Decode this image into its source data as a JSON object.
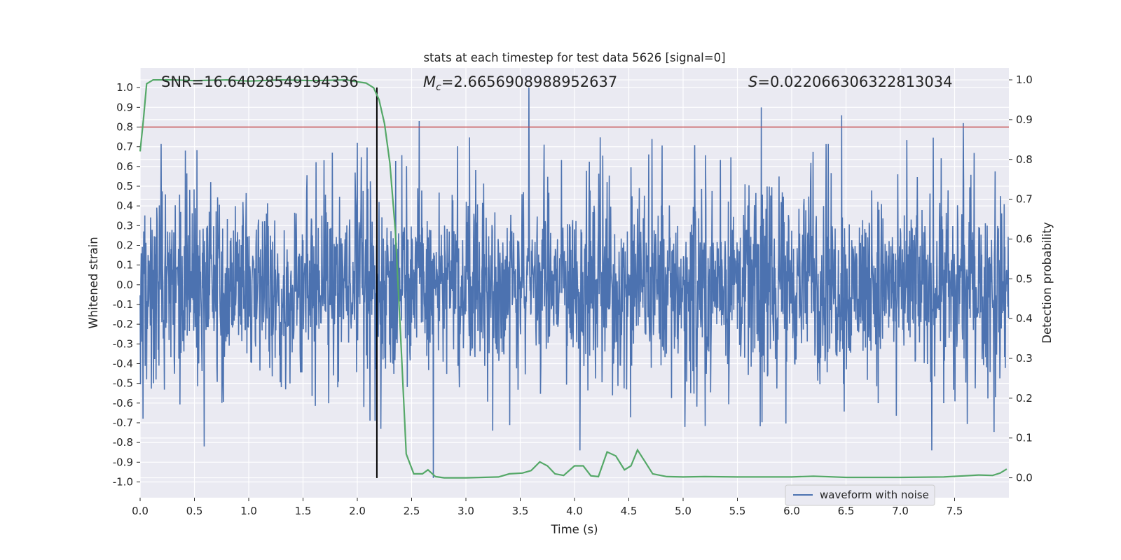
{
  "chart_data": {
    "type": "line",
    "title": "stats at each timestep for test data 5626 [signal=0]",
    "xlabel": "Time (s)",
    "ylabel_left": "Whitened strain",
    "ylabel_right": "Detection probability",
    "xlim": [
      0.0,
      8.0
    ],
    "ylim_left": [
      -1.08,
      1.1
    ],
    "ylim_right": [
      -0.05,
      1.03
    ],
    "x_ticks": [
      "0.0",
      "0.5",
      "1.0",
      "1.5",
      "2.0",
      "2.5",
      "3.0",
      "3.5",
      "4.0",
      "4.5",
      "5.0",
      "5.5",
      "6.0",
      "6.5",
      "7.0",
      "7.5"
    ],
    "y_left_ticks": [
      "1.0",
      "0.9",
      "0.8",
      "0.7",
      "0.6",
      "0.5",
      "0.4",
      "0.3",
      "0.2",
      "0.1",
      "0.0",
      "-0.1",
      "-0.2",
      "-0.3",
      "-0.4",
      "-0.5",
      "-0.6",
      "-0.7",
      "-0.8",
      "-0.9",
      "-1.0"
    ],
    "y_right_ticks": [
      "1.0",
      "0.9",
      "0.8",
      "0.7",
      "0.6",
      "0.5",
      "0.4",
      "0.3",
      "0.2",
      "0.1",
      "0.0"
    ],
    "grid": true,
    "legend_position": "lower-right",
    "threshold_line": {
      "y": 0.8,
      "color": "#c44e52"
    },
    "vertical_marker": {
      "x": 2.18,
      "y_range": [
        -0.98,
        1.0
      ],
      "color": "#000000"
    },
    "annotations": {
      "snr": "SNR=16.64028549194336",
      "mc_symbol": "M",
      "mc_sub": "c",
      "mc_value": "=2.6656908988952637",
      "s_symbol": "S",
      "s_value": "=0.022066306322813034"
    },
    "series": [
      {
        "name": "waveform with noise",
        "color": "#4c72b0",
        "axis": "left",
        "description": "dense noisy whitened strain, roughly within ±0.4 with spikes up to ±0.8",
        "peaks": [
          {
            "x": 3.58,
            "y": 1.0
          },
          {
            "x": 5.72,
            "y": 0.9
          },
          {
            "x": 6.46,
            "y": 0.86
          },
          {
            "x": 2.57,
            "y": 0.83
          },
          {
            "x": 7.58,
            "y": 0.82
          },
          {
            "x": 2.7,
            "y": -0.98
          },
          {
            "x": 0.59,
            "y": -0.82
          },
          {
            "x": 7.29,
            "y": -0.84
          },
          {
            "x": 4.05,
            "y": -0.84
          }
        ]
      },
      {
        "name": "",
        "color": "#55a868",
        "axis": "right",
        "points": [
          [
            0.0,
            0.82
          ],
          [
            0.03,
            0.9
          ],
          [
            0.06,
            0.99
          ],
          [
            0.12,
            1.0
          ],
          [
            0.3,
            1.0
          ],
          [
            0.5,
            0.998
          ],
          [
            0.8,
            1.0
          ],
          [
            1.0,
            0.997
          ],
          [
            1.3,
            1.0
          ],
          [
            1.6,
            0.998
          ],
          [
            1.9,
            1.0
          ],
          [
            2.0,
            0.995
          ],
          [
            2.08,
            0.992
          ],
          [
            2.15,
            0.98
          ],
          [
            2.2,
            0.95
          ],
          [
            2.25,
            0.89
          ],
          [
            2.3,
            0.79
          ],
          [
            2.35,
            0.62
          ],
          [
            2.4,
            0.35
          ],
          [
            2.45,
            0.06
          ],
          [
            2.52,
            0.01
          ],
          [
            2.6,
            0.01
          ],
          [
            2.65,
            0.02
          ],
          [
            2.72,
            0.003
          ],
          [
            2.8,
            0.0
          ],
          [
            3.0,
            0.0
          ],
          [
            3.3,
            0.002
          ],
          [
            3.4,
            0.01
          ],
          [
            3.52,
            0.012
          ],
          [
            3.6,
            0.018
          ],
          [
            3.68,
            0.04
          ],
          [
            3.75,
            0.03
          ],
          [
            3.82,
            0.01
          ],
          [
            3.9,
            0.006
          ],
          [
            4.0,
            0.03
          ],
          [
            4.08,
            0.03
          ],
          [
            4.15,
            0.005
          ],
          [
            4.22,
            0.003
          ],
          [
            4.3,
            0.065
          ],
          [
            4.38,
            0.055
          ],
          [
            4.46,
            0.02
          ],
          [
            4.52,
            0.03
          ],
          [
            4.58,
            0.07
          ],
          [
            4.65,
            0.04
          ],
          [
            4.72,
            0.01
          ],
          [
            4.85,
            0.003
          ],
          [
            5.0,
            0.002
          ],
          [
            5.2,
            0.003
          ],
          [
            5.5,
            0.002
          ],
          [
            6.0,
            0.002
          ],
          [
            6.2,
            0.004
          ],
          [
            6.5,
            0.001
          ],
          [
            7.0,
            0.001
          ],
          [
            7.4,
            0.002
          ],
          [
            7.6,
            0.005
          ],
          [
            7.72,
            0.007
          ],
          [
            7.85,
            0.006
          ],
          [
            7.92,
            0.012
          ],
          [
            7.98,
            0.022
          ]
        ]
      }
    ]
  }
}
